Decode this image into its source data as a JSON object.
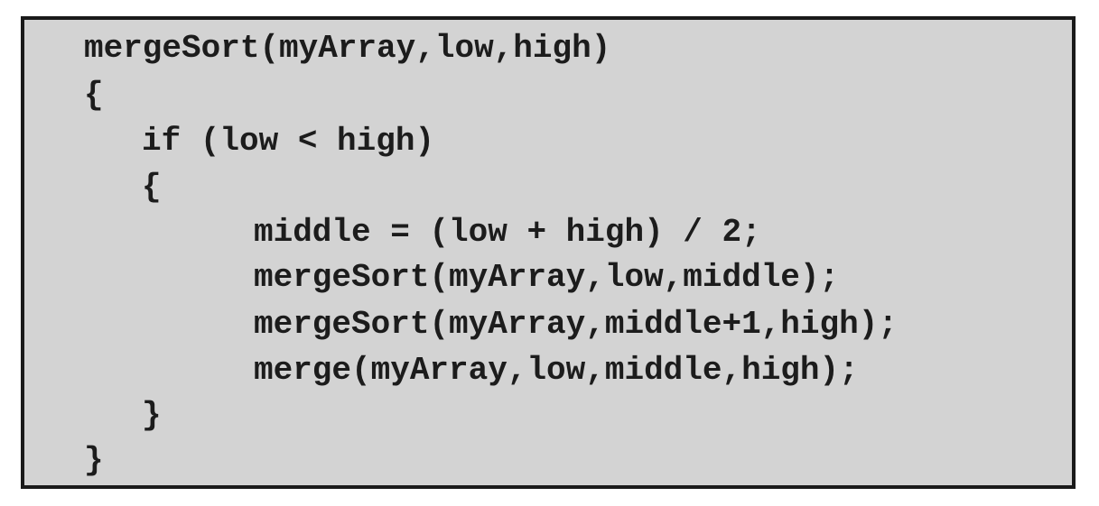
{
  "code": {
    "lines": [
      "mergeSort(myArray,low,high)",
      "{",
      "if (low < high)",
      "{",
      "middle = (low + high) / 2;",
      "mergeSort(myArray,low,middle);",
      "mergeSort(myArray,middle+1,high);",
      "merge(myArray,low,middle,high);",
      "}",
      "}"
    ]
  },
  "colors": {
    "background": "#d3d3d3",
    "border": "#1a1a1a",
    "text": "#1c1c1c"
  }
}
